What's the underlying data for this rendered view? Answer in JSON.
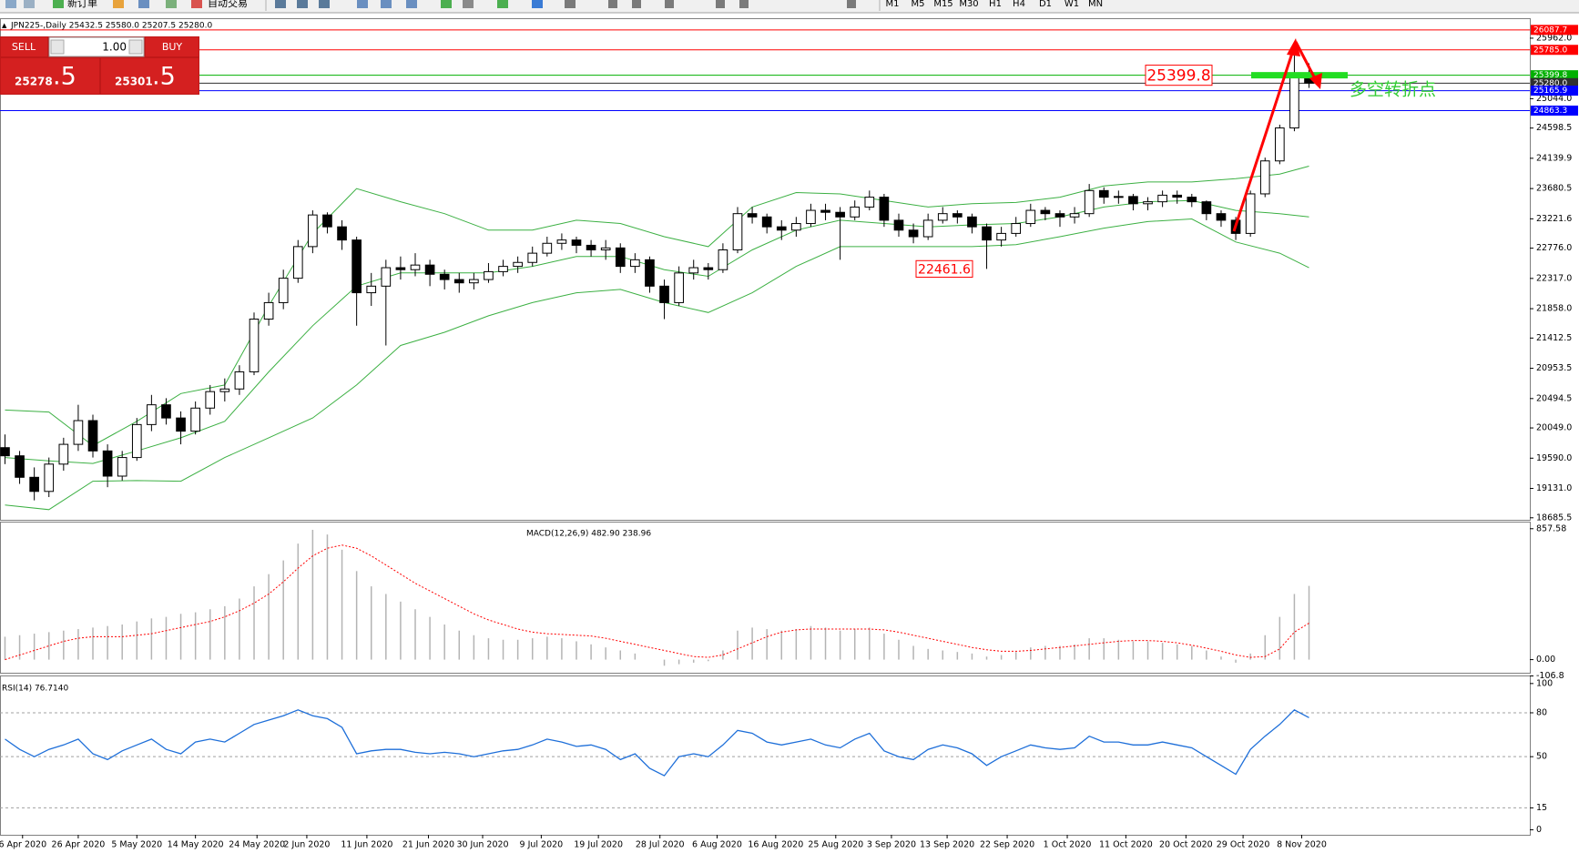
{
  "toolbar": {
    "new_order": "新订单",
    "auto_trading": "自动交易",
    "timeframes": [
      "M1",
      "M5",
      "M15",
      "M30",
      "H1",
      "H4",
      "D1",
      "W1",
      "MN"
    ]
  },
  "trade_panel": {
    "sell": "SELL",
    "buy": "BUY",
    "lot": "1.00",
    "bid": "25278",
    "bid_pip": ".5",
    "ask": "25301",
    "ask_pip": ".5"
  },
  "chart_data": [
    {
      "type": "candlestick",
      "title": "JPN225-,Daily  25432.5 25580.0 25207.5 25280.0",
      "open": [
        19750,
        19626,
        19300,
        19086,
        19500,
        19800,
        20160,
        19700,
        19318,
        19600,
        20100,
        20400,
        20200,
        20000,
        20350,
        20600,
        20640,
        20900,
        21700,
        21950,
        22320,
        22800,
        23280,
        23100,
        22900,
        22100,
        22200,
        22480,
        22450,
        22520,
        22380,
        22300,
        22250,
        22300,
        22420,
        22500,
        22560,
        22700,
        22850,
        22900,
        22820,
        22750,
        22780,
        22500,
        22600,
        22200,
        21950,
        22400,
        22480,
        22450,
        22750,
        23300,
        23250,
        23100,
        23050,
        23150,
        23350,
        23320,
        23250,
        23400,
        23550,
        23200,
        23050,
        22950,
        23200,
        23300,
        23250,
        23100,
        22900,
        23000,
        23150,
        23350,
        23300,
        23250,
        23300,
        23650,
        23550,
        23560,
        23450,
        23480,
        23580,
        23550,
        23480,
        23300,
        23200,
        23000,
        23600,
        24100,
        24600,
        25432.5
      ],
      "high": [
        19950,
        19700,
        19450,
        19600,
        19900,
        20400,
        20250,
        19800,
        19700,
        20200,
        20550,
        20500,
        20300,
        20450,
        20700,
        20800,
        21000,
        21800,
        22100,
        22450,
        22900,
        23350,
        23320,
        23200,
        22950,
        22400,
        22600,
        22650,
        22700,
        22600,
        22450,
        22400,
        22400,
        22550,
        22600,
        22650,
        22800,
        22950,
        23000,
        22950,
        22900,
        22900,
        22850,
        22700,
        22650,
        22300,
        22500,
        22600,
        22550,
        22850,
        23400,
        23400,
        23300,
        23200,
        23250,
        23450,
        23450,
        23400,
        23500,
        23650,
        23600,
        23300,
        23150,
        23300,
        23400,
        23350,
        23300,
        23150,
        23100,
        23250,
        23450,
        23400,
        23350,
        23400,
        23750,
        23700,
        23650,
        23600,
        23550,
        23650,
        23650,
        23600,
        23500,
        23350,
        23250,
        23650,
        24150,
        24650,
        25785,
        25580
      ],
      "low": [
        19500,
        19200,
        18950,
        19000,
        19400,
        19700,
        19600,
        19150,
        19250,
        19550,
        20000,
        20100,
        19800,
        19950,
        20250,
        20450,
        20550,
        20850,
        21600,
        21850,
        22250,
        22700,
        23000,
        22750,
        21600,
        21900,
        21300,
        22300,
        22350,
        22200,
        22150,
        22100,
        22150,
        22250,
        22350,
        22400,
        22500,
        22650,
        22750,
        22700,
        22650,
        22600,
        22400,
        22400,
        22100,
        21700,
        21900,
        22300,
        22300,
        22400,
        22700,
        23150,
        23000,
        22900,
        22950,
        23100,
        23200,
        22600,
        23200,
        23350,
        23100,
        22950,
        22850,
        22900,
        23150,
        23150,
        23000,
        22461.6,
        22800,
        22950,
        23100,
        23200,
        23100,
        23150,
        23250,
        23450,
        23450,
        23350,
        23350,
        23400,
        23450,
        23400,
        23200,
        23100,
        22900,
        22950,
        23550,
        24050,
        24550,
        25207.5
      ],
      "close": [
        19626,
        19300,
        19086,
        19500,
        19800,
        20160,
        19700,
        19318,
        19600,
        20100,
        20400,
        20200,
        20000,
        20350,
        20600,
        20640,
        20900,
        21700,
        21950,
        22320,
        22800,
        23280,
        23100,
        22900,
        22100,
        22200,
        22480,
        22450,
        22520,
        22380,
        22300,
        22250,
        22300,
        22420,
        22500,
        22560,
        22700,
        22850,
        22900,
        22820,
        22750,
        22780,
        22500,
        22600,
        22200,
        21950,
        22400,
        22480,
        22450,
        22750,
        23300,
        23250,
        23100,
        23050,
        23150,
        23350,
        23320,
        23250,
        23400,
        23550,
        23200,
        23050,
        22950,
        23200,
        23300,
        23250,
        23100,
        22900,
        23000,
        23150,
        23350,
        23300,
        23250,
        23300,
        23650,
        23550,
        23560,
        23450,
        23480,
        23580,
        23550,
        23480,
        23300,
        23200,
        23000,
        23600,
        24100,
        24600,
        25432.5,
        25280
      ],
      "bands": [
        {
          "color": "#3cb043",
          "x": [
            0,
            3,
            6,
            9,
            12,
            15,
            18,
            21,
            24,
            27,
            30,
            33,
            36,
            39,
            42,
            45,
            48,
            51,
            54,
            57,
            60,
            63,
            66,
            69,
            72,
            75,
            78,
            81,
            84,
            87,
            89
          ],
          "values": [
            20320,
            20290,
            19780,
            20150,
            20570,
            20700,
            21900,
            23000,
            23680,
            23480,
            23300,
            23050,
            23050,
            23200,
            23150,
            22950,
            22800,
            23400,
            23620,
            23600,
            23500,
            23400,
            23450,
            23470,
            23550,
            23720,
            23780,
            23780,
            23830,
            23900,
            24020
          ]
        },
        {
          "color": "#3cb043",
          "x": [
            0,
            3,
            6,
            9,
            12,
            15,
            18,
            21,
            24,
            27,
            30,
            33,
            36,
            39,
            42,
            45,
            48,
            51,
            54,
            57,
            60,
            63,
            66,
            69,
            72,
            75,
            78,
            81,
            84,
            87,
            89
          ],
          "values": [
            19600,
            19550,
            19510,
            19700,
            19900,
            20150,
            20900,
            21600,
            22200,
            22400,
            22400,
            22400,
            22500,
            22650,
            22650,
            22450,
            22350,
            22750,
            23050,
            23200,
            23150,
            23100,
            23130,
            23150,
            23250,
            23400,
            23480,
            23500,
            23350,
            23300,
            23250
          ]
        },
        {
          "color": "#3cb043",
          "x": [
            0,
            3,
            6,
            9,
            12,
            15,
            18,
            21,
            24,
            27,
            30,
            33,
            36,
            39,
            42,
            45,
            48,
            51,
            54,
            57,
            60,
            63,
            66,
            69,
            72,
            75,
            78,
            81,
            84,
            87,
            89
          ],
          "values": [
            18880,
            18810,
            19240,
            19250,
            19240,
            19600,
            19900,
            20200,
            20700,
            21300,
            21500,
            21750,
            21950,
            22100,
            22150,
            21950,
            21800,
            22100,
            22500,
            22800,
            22800,
            22800,
            22800,
            22830,
            22950,
            23080,
            23180,
            23220,
            22870,
            22700,
            22480
          ]
        }
      ],
      "price_lines": [
        {
          "value": 26087.7,
          "label": "26087.7",
          "color": "#ff0000"
        },
        {
          "value": 25785.0,
          "label": "25785.0",
          "color": "#ff0000"
        },
        {
          "value": 25399.8,
          "label": "25399.8",
          "color": "#00b000"
        },
        {
          "value": 25280.0,
          "label": "25280.0",
          "color": "#303030"
        },
        {
          "value": 25165.9,
          "label": "25165.9",
          "color": "#0000ff"
        },
        {
          "value": 24863.3,
          "label": "24863.3",
          "color": "#0000ff"
        }
      ],
      "annotations": [
        25399.8,
        22461.6
      ],
      "note": "多空转折点",
      "xlim": [
        -0.34,
        104.07
      ],
      "xticks": [
        {
          "value": 1.2,
          "label": "6 Apr 2020"
        },
        {
          "value": 5,
          "label": "26 Apr 2020"
        },
        {
          "value": 9,
          "label": "5 May 2020"
        },
        {
          "value": 13,
          "label": "14 May 2020"
        },
        {
          "value": 17.2,
          "label": "24 May 2020"
        },
        {
          "value": 20.6,
          "label": "2 Jun 2020"
        },
        {
          "value": 24.7,
          "label": "11 Jun 2020"
        },
        {
          "value": 28.9,
          "label": "21 Jun 2020"
        },
        {
          "value": 32.6,
          "label": "30 Jun 2020"
        },
        {
          "value": 36.6,
          "label": "9 Jul 2020"
        },
        {
          "value": 40.5,
          "label": "19 Jul 2020"
        },
        {
          "value": 44.7,
          "label": "28 Jul 2020"
        },
        {
          "value": 48.6,
          "label": "6 Aug 2020"
        },
        {
          "value": 52.6,
          "label": "16 Aug 2020"
        },
        {
          "value": 56.7,
          "label": "25 Aug 2020"
        },
        {
          "value": 60.5,
          "label": "3 Sep 2020"
        },
        {
          "value": 64.3,
          "label": "13 Sep 2020"
        },
        {
          "value": 68.4,
          "label": "22 Sep 2020"
        },
        {
          "value": 72.5,
          "label": "1 Oct 2020"
        },
        {
          "value": 76.5,
          "label": "11 Oct 2020"
        },
        {
          "value": 80.6,
          "label": "20 Oct 2020"
        },
        {
          "value": 84.5,
          "label": "29 Oct 2020"
        },
        {
          "value": 88.5,
          "label": "8 Nov 2020"
        }
      ],
      "ylim": [
        18655,
        26265
      ],
      "yticks": [
        {
          "value": 25962,
          "label": "25962.0"
        },
        {
          "value": 25044,
          "label": "25044.0"
        },
        24598.5,
        24139.9,
        23680.5,
        23221.6,
        {
          "value": 22776,
          "label": "22776.0"
        },
        {
          "value": 22317,
          "label": "22317.0"
        },
        {
          "value": 21858,
          "label": "21858.0"
        },
        21412.5,
        20953.5,
        20494.5,
        {
          "value": 20049,
          "label": "20049.0"
        },
        {
          "value": 19590,
          "label": "19590.0"
        },
        {
          "value": 19131,
          "label": "19131.0"
        },
        18685.5
      ]
    },
    {
      "type": "macd",
      "title": "MACD(12,26,9) 482.90 238.96",
      "series": [
        {
          "color": "#b4b4b4",
          "values": [
            150,
            160,
            170,
            180,
            190,
            200,
            210,
            220,
            230,
            250,
            270,
            280,
            300,
            310,
            330,
            350,
            400,
            480,
            560,
            650,
            760,
            850,
            820,
            720,
            580,
            480,
            430,
            380,
            330,
            280,
            230,
            190,
            160,
            140,
            130,
            130,
            140,
            150,
            140,
            120,
            100,
            80,
            60,
            40,
            0,
            -40,
            -30,
            -20,
            -10,
            60,
            190,
            210,
            200,
            190,
            200,
            220,
            210,
            190,
            200,
            210,
            170,
            130,
            90,
            70,
            60,
            50,
            40,
            20,
            30,
            50,
            80,
            90,
            90,
            100,
            140,
            140,
            130,
            120,
            120,
            110,
            100,
            90,
            60,
            20,
            -20,
            40,
            160,
            280,
            430,
            482.9
          ]
        },
        {
          "color": "#ff0000",
          "values": [
            0,
            30,
            60,
            90,
            120,
            140,
            150,
            150,
            150,
            160,
            170,
            190,
            210,
            230,
            250,
            280,
            320,
            370,
            430,
            510,
            600,
            680,
            730,
            750,
            730,
            680,
            620,
            560,
            500,
            450,
            400,
            350,
            300,
            260,
            230,
            200,
            180,
            170,
            165,
            160,
            155,
            140,
            120,
            100,
            80,
            60,
            40,
            20,
            15,
            30,
            70,
            110,
            150,
            180,
            195,
            200,
            200,
            200,
            200,
            200,
            195,
            180,
            160,
            140,
            120,
            100,
            80,
            65,
            55,
            55,
            60,
            70,
            80,
            90,
            100,
            110,
            120,
            125,
            125,
            120,
            110,
            95,
            75,
            55,
            30,
            15,
            20,
            70,
            180,
            238.96
          ]
        }
      ],
      "ylim": [
        -86,
        904
      ],
      "yticks": [
        857.58,
        {
          "value": 0,
          "label": "0.00"
        },
        -106.8
      ]
    },
    {
      "type": "rsi",
      "title": "RSI(14) 76.7140",
      "series": [
        {
          "color": "#1e6fd9",
          "values": [
            62,
            55,
            50,
            55,
            58,
            62,
            52,
            48,
            54,
            58,
            62,
            55,
            52,
            60,
            62,
            60,
            66,
            72,
            75,
            78,
            82,
            78,
            76,
            70,
            52,
            54,
            55,
            55,
            53,
            52,
            53,
            52,
            50,
            52,
            54,
            55,
            58,
            62,
            60,
            57,
            58,
            55,
            48,
            52,
            42,
            37,
            50,
            52,
            50,
            58,
            68,
            66,
            60,
            58,
            60,
            62,
            58,
            56,
            62,
            66,
            54,
            50,
            48,
            55,
            58,
            56,
            52,
            44,
            50,
            54,
            58,
            56,
            55,
            56,
            64,
            60,
            60,
            58,
            58,
            60,
            58,
            56,
            50,
            44,
            38,
            55,
            64,
            72,
            82,
            76.714
          ]
        }
      ],
      "ylim": [
        -3.4,
        105.5
      ],
      "yticks": [
        100,
        80,
        50,
        15,
        0
      ]
    }
  ]
}
